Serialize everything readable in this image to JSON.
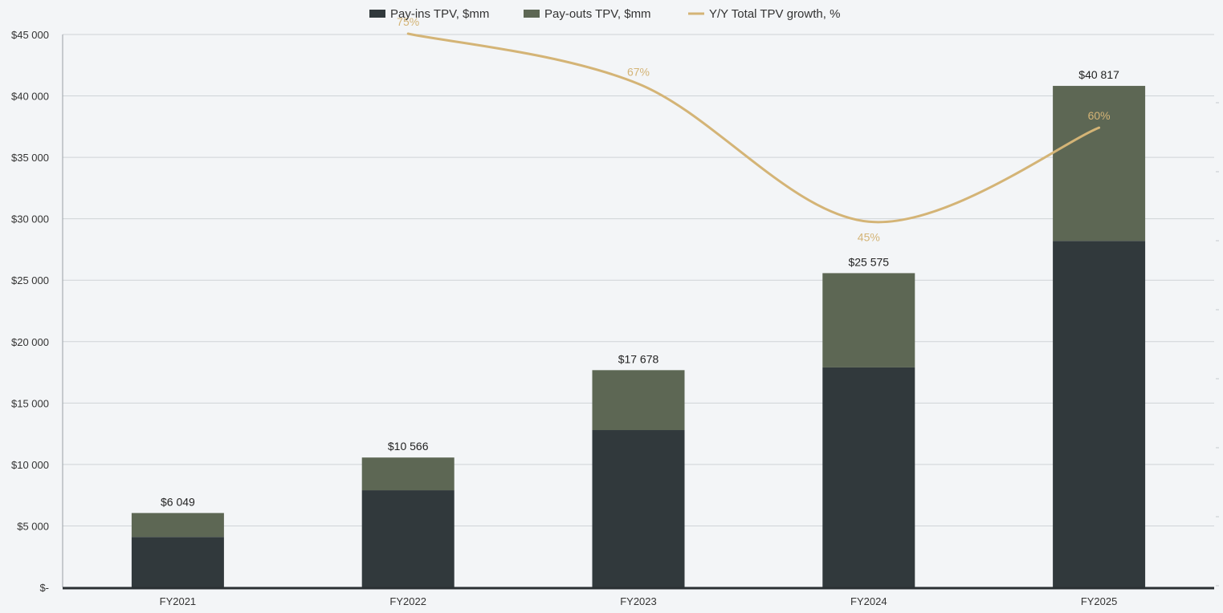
{
  "chart_data": {
    "type": "bar",
    "stacked": true,
    "categories": [
      "FY2021",
      "FY2022",
      "FY2023",
      "FY2024",
      "FY2025"
    ],
    "series": [
      {
        "name": "Pay-ins TPV, $mm",
        "type": "bar",
        "color": "#31393c",
        "values": [
          4100,
          7900,
          12800,
          17900,
          28200
        ]
      },
      {
        "name": "Pay-outs TPV, $mm",
        "type": "bar",
        "color": "#5d6754",
        "values": [
          1949,
          2666,
          4878,
          7675,
          12617
        ]
      },
      {
        "name": "Y/Y Total TPV growth, %",
        "type": "line",
        "axis": "secondary",
        "color": "#d4b476",
        "values": [
          null,
          75,
          67,
          45,
          60
        ]
      }
    ],
    "totals": [
      6049,
      10566,
      17678,
      25575,
      40817
    ],
    "total_labels": [
      "$6 049",
      "$10 566",
      "$17 678",
      "$25 575",
      "$40 817"
    ],
    "growth_labels": [
      "",
      "75%",
      "67%",
      "45%",
      "60%"
    ],
    "y_ticks": [
      0,
      5000,
      10000,
      15000,
      20000,
      25000,
      30000,
      35000,
      40000,
      45000
    ],
    "y_tick_labels": [
      "$-",
      "$5 000",
      "$10 000",
      "$15 000",
      "$20 000",
      "$25 000",
      "$30 000",
      "$35 000",
      "$40 000",
      "$45 000"
    ],
    "ylim": [
      0,
      45000
    ],
    "grid": true,
    "legend": "top-center"
  }
}
